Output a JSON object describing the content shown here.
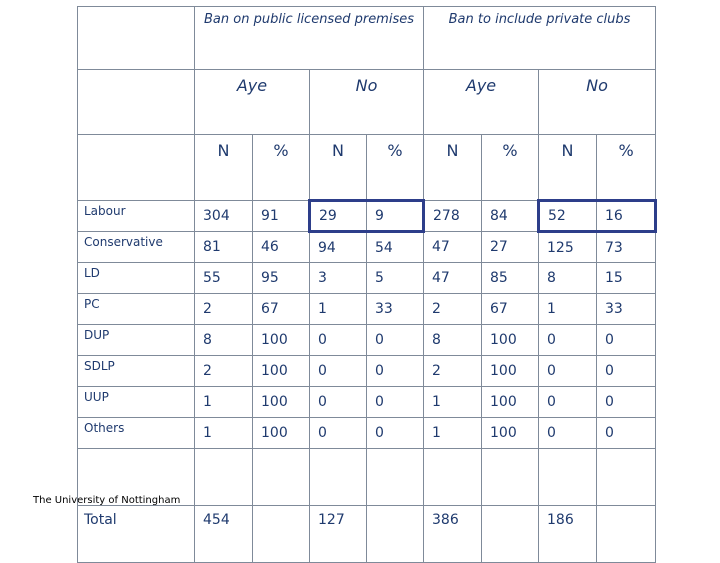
{
  "headers": {
    "group1": "Ban on public licensed premises",
    "group2": "Ban to include private clubs",
    "aye": "Aye",
    "no": "No",
    "n": "N",
    "pct": "%"
  },
  "rows": [
    {
      "party": "Labour",
      "values": [
        "304",
        "91",
        "29",
        "9",
        "278",
        "84",
        "52",
        "16"
      ]
    },
    {
      "party": "Conservative",
      "values": [
        "81",
        "46",
        "94",
        "54",
        "47",
        "27",
        "125",
        "73"
      ]
    },
    {
      "party": "LD",
      "values": [
        "55",
        "95",
        "3",
        "5",
        "47",
        "85",
        "8",
        "15"
      ]
    },
    {
      "party": "PC",
      "values": [
        "2",
        "67",
        "1",
        "33",
        "2",
        "67",
        "1",
        "33"
      ]
    },
    {
      "party": "DUP",
      "values": [
        "8",
        "100",
        "0",
        "0",
        "8",
        "100",
        "0",
        "0"
      ]
    },
    {
      "party": "SDLP",
      "values": [
        "2",
        "100",
        "0",
        "0",
        "2",
        "100",
        "0",
        "0"
      ]
    },
    {
      "party": "UUP",
      "values": [
        "1",
        "100",
        "0",
        "0",
        "1",
        "100",
        "0",
        "0"
      ]
    },
    {
      "party": "Others",
      "values": [
        "1",
        "100",
        "0",
        "0",
        "1",
        "100",
        "0",
        "0"
      ]
    }
  ],
  "total": {
    "label": "Total",
    "values": [
      "454",
      "",
      "127",
      "",
      "386",
      "",
      "186",
      ""
    ]
  },
  "footer": "The University of Nottingham",
  "colors": {
    "text": "#1f3a6e",
    "highlight_border": "#2d3e8a",
    "grid": "#7f8a99"
  }
}
